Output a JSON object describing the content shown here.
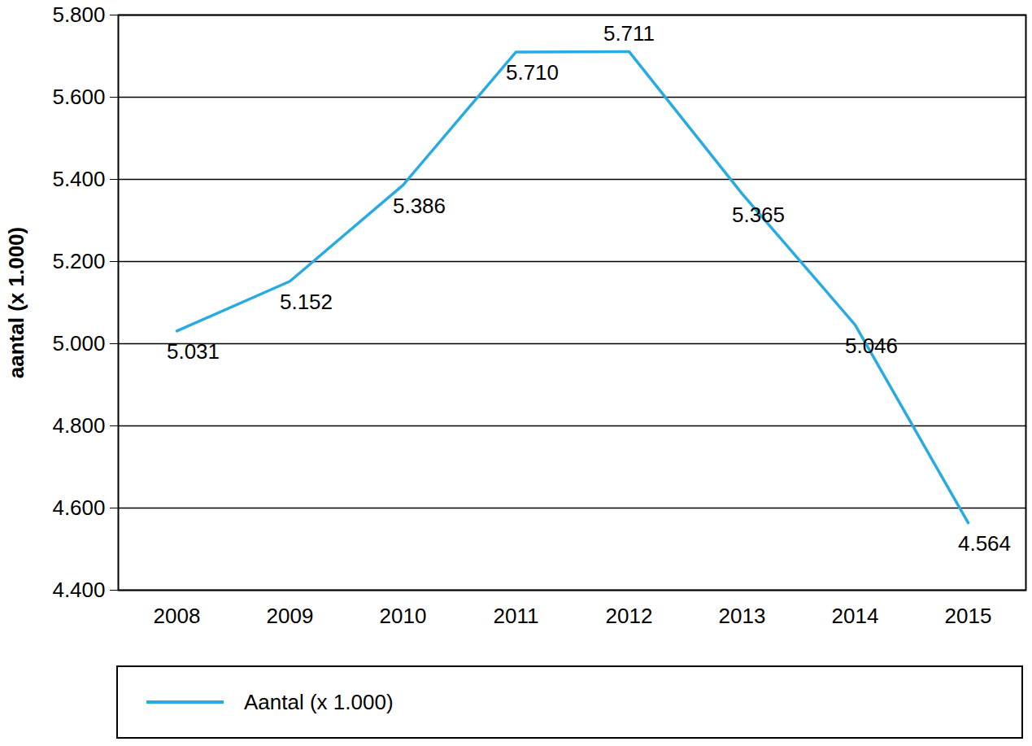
{
  "chart_data": {
    "type": "line",
    "categories": [
      "2008",
      "2009",
      "2010",
      "2011",
      "2012",
      "2013",
      "2014",
      "2015"
    ],
    "series": [
      {
        "name": "Aantal (x 1.000)",
        "color": "#29abe2",
        "values": [
          5031,
          5152,
          5386,
          5710,
          5711,
          5365,
          5046,
          4564
        ],
        "value_labels": [
          "5.031",
          "5.152",
          "5.386",
          "5.710",
          "5.711",
          "5.365",
          "5.046",
          "4.564"
        ]
      }
    ],
    "ylabel": "aantal (x 1.000)",
    "ylim": [
      4400,
      5800
    ],
    "yticks": [
      {
        "value": 4400,
        "label": "4.400"
      },
      {
        "value": 4600,
        "label": "4.600"
      },
      {
        "value": 4800,
        "label": "4.800"
      },
      {
        "value": 5000,
        "label": "5.000"
      },
      {
        "value": 5200,
        "label": "5.200"
      },
      {
        "value": 5400,
        "label": "5.400"
      },
      {
        "value": 5600,
        "label": "5.600"
      },
      {
        "value": 5800,
        "label": "5.800"
      }
    ],
    "grid": true,
    "data_labels": true,
    "legend": "bottom"
  }
}
